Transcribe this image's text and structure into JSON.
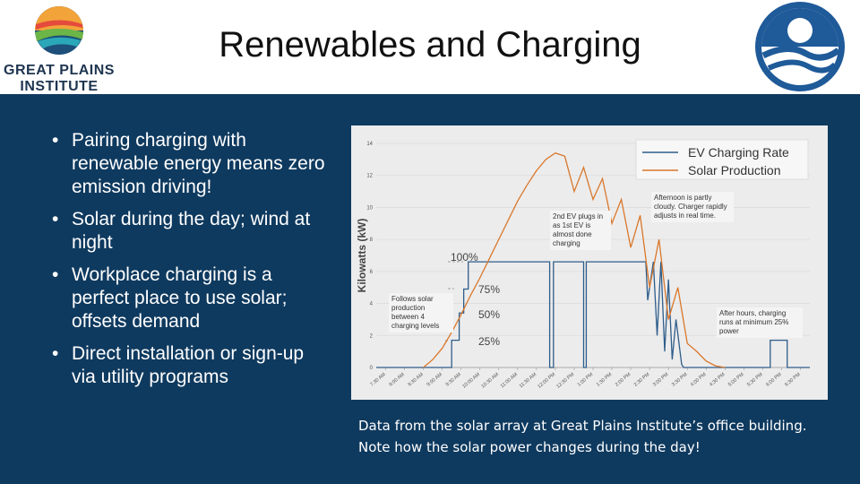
{
  "header": {
    "title": "Renewables and Charging",
    "logo_text": [
      "GREAT PLAINS",
      "INSTITUTE"
    ]
  },
  "bullets": [
    "Pairing charging with renewable energy means zero emission driving!",
    "Solar during the day; wind at night",
    "Workplace charging is a perfect place to use solar; offsets demand",
    "Direct installation or sign-up via utility programs"
  ],
  "caption": "Data from the solar array at Great Plains Institute’s office building. Note how the solar power changes during the day!",
  "chart_data": {
    "type": "line",
    "y_label": "Kilowatts (kW)",
    "xlim": [
      7.25,
      18.75
    ],
    "ylim": [
      0,
      14
    ],
    "yticks": [
      0,
      2,
      4,
      6,
      8,
      10,
      12,
      14
    ],
    "grid": true,
    "legend": "upper right",
    "xticks": [
      {
        "value": 7.5,
        "label": "7:30 AM"
      },
      {
        "value": 8,
        "label": "8:00 AM"
      },
      {
        "value": 8.5,
        "label": "8:30 AM"
      },
      {
        "value": 9,
        "label": "9:00 AM"
      },
      {
        "value": 9.5,
        "label": "9:30 AM"
      },
      {
        "value": 10,
        "label": "10:00 AM"
      },
      {
        "value": 10.5,
        "label": "10:30 AM"
      },
      {
        "value": 11,
        "label": "11:00 AM"
      },
      {
        "value": 11.5,
        "label": "11:30 AM"
      },
      {
        "value": 12,
        "label": "12:00 PM"
      },
      {
        "value": 12.5,
        "label": "12:30 PM"
      },
      {
        "value": 13,
        "label": "1:00 PM"
      },
      {
        "value": 13.5,
        "label": "1:30 PM"
      },
      {
        "value": 14,
        "label": "2:00 PM"
      },
      {
        "value": 14.5,
        "label": "2:30 PM"
      },
      {
        "value": 15,
        "label": "3:00 PM"
      },
      {
        "value": 15.5,
        "label": "3:30 PM"
      },
      {
        "value": 16,
        "label": "4:00 PM"
      },
      {
        "value": 16.5,
        "label": "4:30 PM"
      },
      {
        "value": 17,
        "label": "5:00 PM"
      },
      {
        "value": 17.5,
        "label": "5:30 PM"
      },
      {
        "value": 18,
        "label": "6:00 PM"
      },
      {
        "value": 18.5,
        "label": "6:30 PM"
      }
    ],
    "series": [
      {
        "name": "EV Charging Rate",
        "color": "#2f5d8a",
        "x": [
          7.25,
          9.25,
          9.25,
          9.45,
          9.45,
          9.57,
          9.57,
          9.69,
          9.69,
          11.85,
          11.85,
          11.95,
          11.95,
          12.75,
          12.75,
          12.82,
          12.82,
          14.4,
          14.45,
          14.6,
          14.7,
          14.8,
          14.9,
          15.0,
          15.1,
          15.2,
          15.35,
          15.4,
          17.7,
          17.7,
          18.15,
          18.15,
          18.75
        ],
        "values": [
          0,
          0,
          1.7,
          1.7,
          3.4,
          3.4,
          4.9,
          4.9,
          6.6,
          6.6,
          0,
          0,
          6.6,
          6.6,
          0,
          0,
          6.6,
          6.6,
          4.2,
          6.6,
          2.0,
          6.6,
          1.0,
          5.5,
          0.5,
          3,
          0.2,
          0,
          0,
          1.7,
          1.7,
          0,
          0
        ]
      },
      {
        "name": "Solar Production",
        "color": "#d9772b",
        "x": [
          8.5,
          8.75,
          9,
          9.25,
          9.5,
          9.75,
          10,
          10.25,
          10.5,
          10.75,
          11,
          11.25,
          11.5,
          11.75,
          12,
          12.25,
          12.5,
          12.75,
          13,
          13.25,
          13.5,
          13.75,
          14,
          14.25,
          14.5,
          14.75,
          15,
          15.25,
          15.5,
          15.75,
          16,
          16.25,
          16.5
        ],
        "values": [
          0,
          0.5,
          1.2,
          2.2,
          3.3,
          4.5,
          5.6,
          6.8,
          8,
          9.2,
          10.4,
          11.4,
          12.3,
          13,
          13.4,
          13.2,
          11,
          12.5,
          10.5,
          11.8,
          9,
          10.5,
          7.5,
          9.5,
          5,
          8,
          3,
          5,
          1.5,
          1,
          0.4,
          0.1,
          0
        ]
      }
    ],
    "annotations": [
      "100%",
      "75%",
      "50%",
      "25%",
      "Afternoon is partly cloudy. Charger rapidly adjusts in real time.",
      "2nd EV plugs in as 1st EV is almost done charging",
      "Follows solar production between 4 charging levels",
      "After hours, charging runs at minimum 25% power"
    ]
  }
}
